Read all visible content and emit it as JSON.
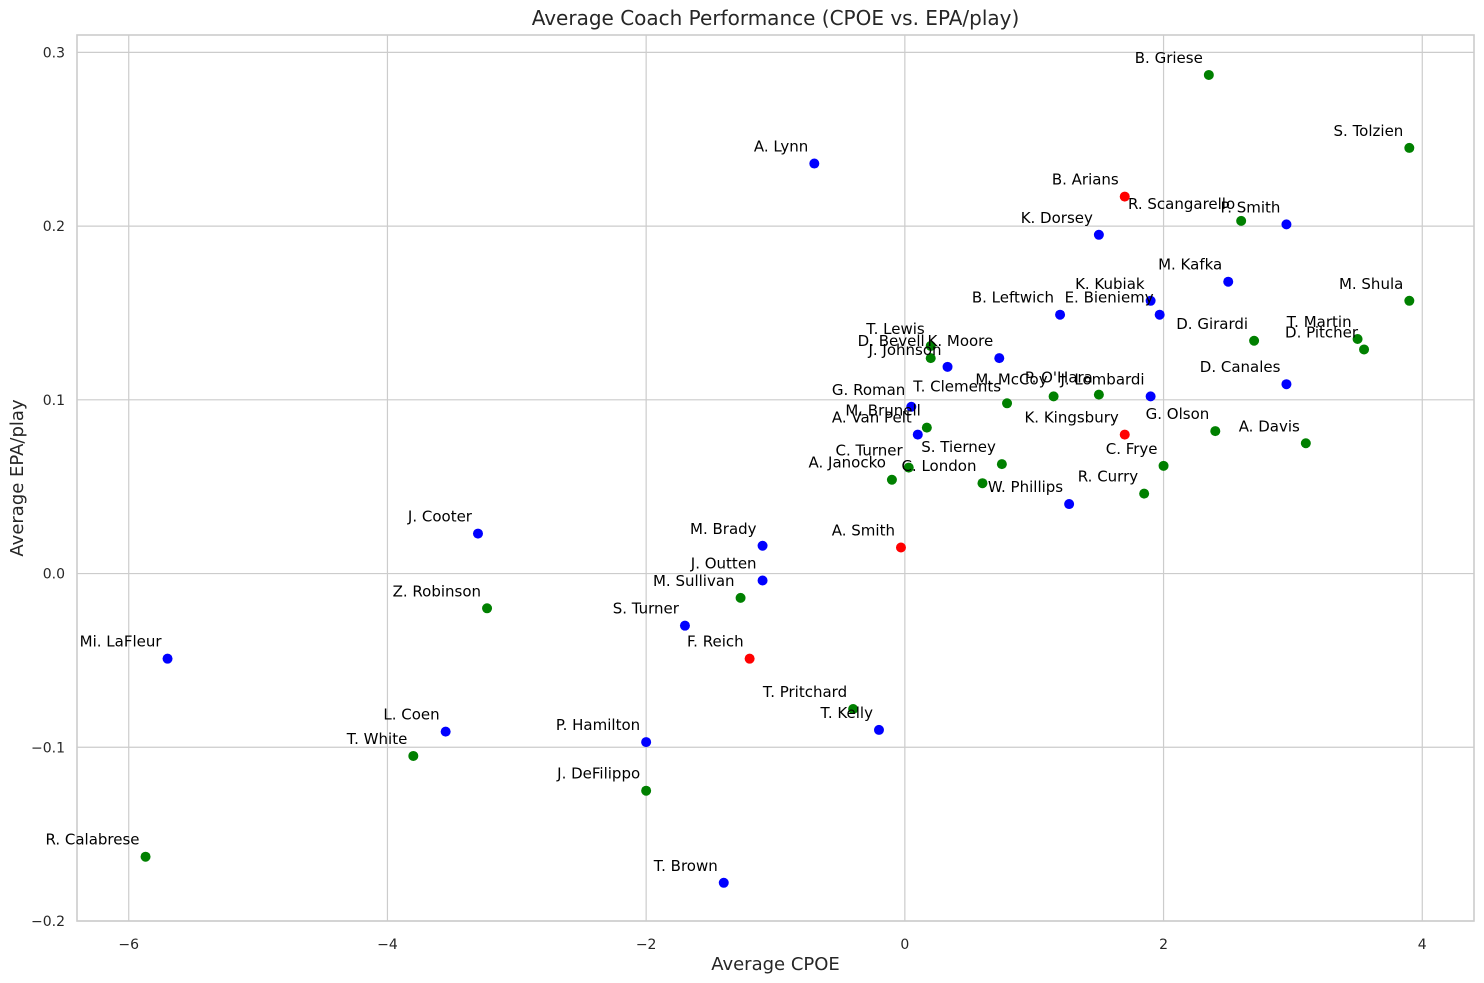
{
  "chart_data": {
    "type": "scatter",
    "title": "Average Coach Performance (CPOE vs. EPA/play)",
    "xlabel": "Average CPOE",
    "ylabel": "Average EPA/play",
    "xlim": [
      -6.4,
      4.4
    ],
    "ylim": [
      -0.2,
      0.31
    ],
    "xticks": [
      -6,
      -4,
      -2,
      0,
      2,
      4
    ],
    "xtick_labels": [
      "−6",
      "−4",
      "−2",
      "0",
      "2",
      "4"
    ],
    "yticks": [
      -0.2,
      -0.1,
      0.0,
      0.1,
      0.2,
      0.3
    ],
    "ytick_labels": [
      "−0.2",
      "−0.1",
      "0.0",
      "0.1",
      "0.2",
      "0.3"
    ],
    "grid": true,
    "colors": {
      "blue": "#0000ff",
      "green": "#008000",
      "red": "#ff0000"
    },
    "points": [
      {
        "label": "B. Griese",
        "x": 2.35,
        "y": 0.287,
        "color": "green"
      },
      {
        "label": "A. Lynn",
        "x": -0.7,
        "y": 0.236,
        "color": "blue"
      },
      {
        "label": "S. Tolzien",
        "x": 3.9,
        "y": 0.245,
        "color": "green"
      },
      {
        "label": "B. Arians",
        "x": 1.7,
        "y": 0.217,
        "color": "red"
      },
      {
        "label": "R. Scangarello",
        "x": 2.6,
        "y": 0.203,
        "color": "green"
      },
      {
        "label": "P. Smith",
        "x": 2.95,
        "y": 0.201,
        "color": "blue"
      },
      {
        "label": "K. Dorsey",
        "x": 1.5,
        "y": 0.195,
        "color": "blue"
      },
      {
        "label": "M. Kafka",
        "x": 2.5,
        "y": 0.168,
        "color": "blue"
      },
      {
        "label": "M. Shula",
        "x": 3.9,
        "y": 0.157,
        "color": "green"
      },
      {
        "label": "K. Kubiak",
        "x": 1.9,
        "y": 0.157,
        "color": "blue"
      },
      {
        "label": "B. Leftwich",
        "x": 1.2,
        "y": 0.149,
        "color": "blue"
      },
      {
        "label": "E. Bieniemy",
        "x": 1.97,
        "y": 0.149,
        "color": "blue"
      },
      {
        "label": "D. Girardi",
        "x": 2.7,
        "y": 0.134,
        "color": "green"
      },
      {
        "label": "T. Martin",
        "x": 3.5,
        "y": 0.135,
        "color": "green"
      },
      {
        "label": "D. Pitcher",
        "x": 3.55,
        "y": 0.129,
        "color": "green"
      },
      {
        "label": "T. Lewis",
        "x": 0.2,
        "y": 0.131,
        "color": "green"
      },
      {
        "label": "J. Johnson",
        "x": 0.33,
        "y": 0.119,
        "color": "blue"
      },
      {
        "label": "D. Bevell",
        "x": 0.2,
        "y": 0.124,
        "color": "green"
      },
      {
        "label": "K. Moore",
        "x": 0.73,
        "y": 0.124,
        "color": "blue"
      },
      {
        "label": "D. Canales",
        "x": 2.95,
        "y": 0.109,
        "color": "blue"
      },
      {
        "label": "M. McCoy",
        "x": 1.15,
        "y": 0.102,
        "color": "green"
      },
      {
        "label": "P. O'Hara",
        "x": 1.5,
        "y": 0.103,
        "color": "green"
      },
      {
        "label": "J. Lombardi",
        "x": 1.9,
        "y": 0.102,
        "color": "blue"
      },
      {
        "label": "T. Clements",
        "x": 0.79,
        "y": 0.098,
        "color": "green"
      },
      {
        "label": "G. Roman",
        "x": 0.05,
        "y": 0.096,
        "color": "blue"
      },
      {
        "label": "M. Brunell",
        "x": 0.17,
        "y": 0.084,
        "color": "green"
      },
      {
        "label": "A. Van Pelt",
        "x": 0.1,
        "y": 0.08,
        "color": "blue"
      },
      {
        "label": "K. Kingsbury",
        "x": 1.7,
        "y": 0.08,
        "color": "red"
      },
      {
        "label": "G. Olson",
        "x": 2.4,
        "y": 0.082,
        "color": "green"
      },
      {
        "label": "A. Davis",
        "x": 3.1,
        "y": 0.075,
        "color": "green"
      },
      {
        "label": "S. Tierney",
        "x": 0.75,
        "y": 0.063,
        "color": "green"
      },
      {
        "label": "C. Frye",
        "x": 2.0,
        "y": 0.062,
        "color": "green"
      },
      {
        "label": "C. Turner",
        "x": 0.03,
        "y": 0.061,
        "color": "green"
      },
      {
        "label": "A. Janocko",
        "x": -0.1,
        "y": 0.054,
        "color": "green"
      },
      {
        "label": "C. London",
        "x": 0.6,
        "y": 0.052,
        "color": "green"
      },
      {
        "label": "R. Curry",
        "x": 1.85,
        "y": 0.046,
        "color": "green"
      },
      {
        "label": "W. Phillips",
        "x": 1.27,
        "y": 0.04,
        "color": "blue"
      },
      {
        "label": "J. Cooter",
        "x": -3.3,
        "y": 0.023,
        "color": "blue"
      },
      {
        "label": "M. Brady",
        "x": -1.1,
        "y": 0.016,
        "color": "blue"
      },
      {
        "label": "A. Smith",
        "x": -0.03,
        "y": 0.015,
        "color": "red"
      },
      {
        "label": "J. Outten",
        "x": -1.1,
        "y": -0.004,
        "color": "blue"
      },
      {
        "label": "M. Sullivan",
        "x": -1.27,
        "y": -0.014,
        "color": "green"
      },
      {
        "label": "Z. Robinson",
        "x": -3.23,
        "y": -0.02,
        "color": "green"
      },
      {
        "label": "S. Turner",
        "x": -1.7,
        "y": -0.03,
        "color": "blue"
      },
      {
        "label": "F. Reich",
        "x": -1.2,
        "y": -0.049,
        "color": "red"
      },
      {
        "label": "Mi. LaFleur",
        "x": -5.7,
        "y": -0.049,
        "color": "blue"
      },
      {
        "label": "T. Pritchard",
        "x": -0.4,
        "y": -0.078,
        "color": "green"
      },
      {
        "label": "T. Kelly",
        "x": -0.2,
        "y": -0.09,
        "color": "blue"
      },
      {
        "label": "L. Coen",
        "x": -3.55,
        "y": -0.091,
        "color": "blue"
      },
      {
        "label": "P. Hamilton",
        "x": -2.0,
        "y": -0.097,
        "color": "blue"
      },
      {
        "label": "T. White",
        "x": -3.8,
        "y": -0.105,
        "color": "green"
      },
      {
        "label": "J. DeFilippo",
        "x": -2.0,
        "y": -0.125,
        "color": "green"
      },
      {
        "label": "R. Calabrese",
        "x": -5.87,
        "y": -0.163,
        "color": "green"
      },
      {
        "label": "T. Brown",
        "x": -1.4,
        "y": -0.178,
        "color": "blue"
      }
    ]
  }
}
